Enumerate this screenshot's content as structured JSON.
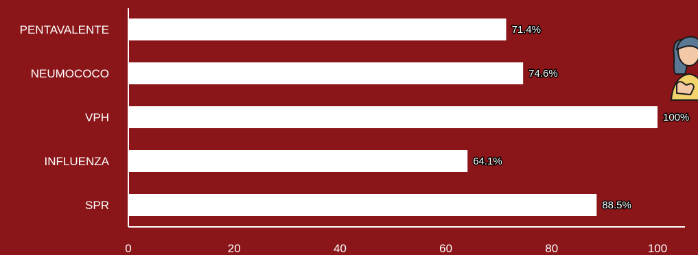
{
  "colors": {
    "background": "#8a1619",
    "bar": "#ffffff",
    "axis": "#ffffff",
    "text": "#ffffff"
  },
  "chart_data": {
    "type": "bar",
    "orientation": "horizontal",
    "categories": [
      "PENTAVALENTE",
      "NEUMOCOCO",
      "VPH",
      "INFLUENZA",
      "SPR"
    ],
    "values": [
      71.4,
      74.6,
      100,
      64.1,
      88.5
    ],
    "data_labels": [
      "71.4%",
      "74.6%",
      "100%",
      "64.1%",
      "88.5%"
    ],
    "xlim": [
      0,
      100
    ],
    "xticks": [
      0,
      20,
      40,
      60,
      80,
      100
    ],
    "xtick_labels": [
      "0",
      "20",
      "40",
      "60",
      "80",
      "100"
    ],
    "grid": false,
    "legend": "none"
  },
  "decoration": {
    "icon": "woman-thumbs-up-icon"
  }
}
